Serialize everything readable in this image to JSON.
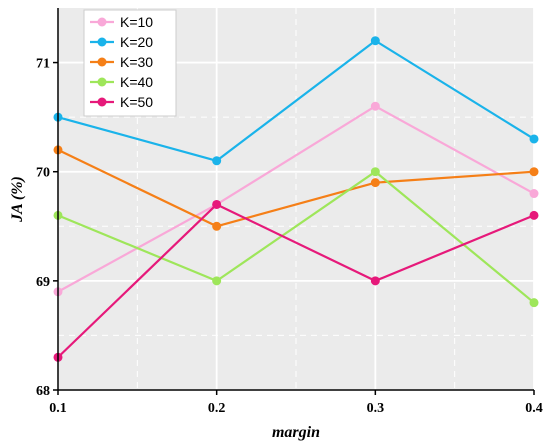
{
  "chart_data": {
    "type": "line",
    "title": "",
    "xlabel": "margin",
    "ylabel": "JA (%)",
    "x": [
      0.1,
      0.2,
      0.3,
      0.4
    ],
    "x_tick_labels": [
      "0.1",
      "0.2",
      "0.3",
      "0.4"
    ],
    "xlim": [
      0.1,
      0.4
    ],
    "ylim": [
      68,
      71.5
    ],
    "y_ticks": [
      68,
      69,
      70,
      71
    ],
    "y_tick_labels": [
      "68",
      "69",
      "70",
      "71"
    ],
    "grid": true,
    "legend_position": "top-left",
    "background_color": "#ebebeb",
    "series": [
      {
        "name": "K=10",
        "color": "#f9a8d8",
        "values": [
          68.9,
          69.7,
          70.6,
          69.8
        ]
      },
      {
        "name": "K=20",
        "color": "#1ab3ea",
        "values": [
          70.5,
          70.1,
          71.2,
          70.3
        ]
      },
      {
        "name": "K=30",
        "color": "#f57f17",
        "values": [
          70.2,
          69.5,
          69.9,
          70.0
        ]
      },
      {
        "name": "K=40",
        "color": "#9ee65a",
        "values": [
          69.6,
          69.0,
          70.0,
          68.8
        ]
      },
      {
        "name": "K=50",
        "color": "#e6197a",
        "values": [
          68.3,
          69.7,
          69.0,
          69.6
        ]
      }
    ]
  }
}
